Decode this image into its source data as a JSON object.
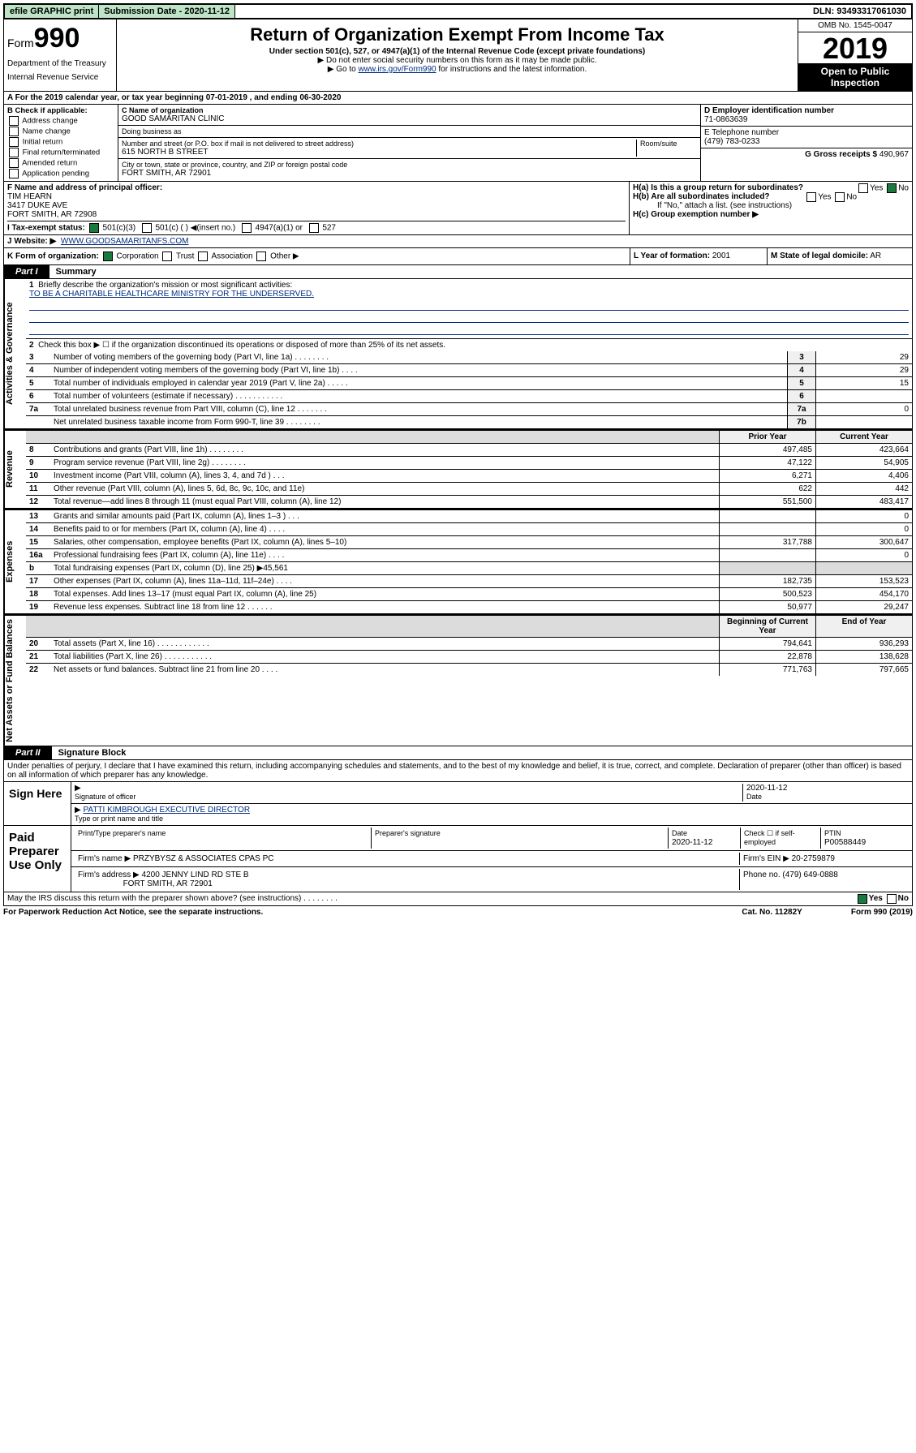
{
  "topbar": {
    "efile": "efile GRAPHIC print",
    "submission_label": "Submission Date",
    "submission_date": "2020-11-12",
    "dln_label": "DLN:",
    "dln": "93493317061030"
  },
  "header": {
    "form_label": "Form",
    "form_no": "990",
    "dept1": "Department of the Treasury",
    "dept2": "Internal Revenue Service",
    "title": "Return of Organization Exempt From Income Tax",
    "subtitle": "Under section 501(c), 527, or 4947(a)(1) of the Internal Revenue Code (except private foundations)",
    "note1": "Do not enter social security numbers on this form as it may be made public.",
    "note2_pre": "Go to ",
    "note2_link": "www.irs.gov/Form990",
    "note2_post": " for instructions and the latest information.",
    "omb": "OMB No. 1545-0047",
    "year": "2019",
    "open": "Open to Public Inspection"
  },
  "row_a": "A   For the 2019 calendar year, or tax year beginning 07-01-2019    , and ending 06-30-2020",
  "col_b": {
    "title": "B Check if applicable:",
    "items": [
      "Address change",
      "Name change",
      "Initial return",
      "Final return/terminated",
      "Amended return",
      "Application pending"
    ]
  },
  "col_c": {
    "c_label": "C Name of organization",
    "c_value": "GOOD SAMARITAN CLINIC",
    "dba_label": "Doing business as",
    "addr_label": "Number and street (or P.O. box if mail is not delivered to street address)",
    "room_label": "Room/suite",
    "addr_value": "615 NORTH B STREET",
    "city_label": "City or town, state or province, country, and ZIP or foreign postal code",
    "city_value": "FORT SMITH, AR  72901"
  },
  "col_right": {
    "d_label": "D Employer identification number",
    "d_value": "71-0863639",
    "e_label": "E Telephone number",
    "e_value": "(479) 783-0233",
    "g_label": "G Gross receipts $",
    "g_value": "490,967"
  },
  "row_f": {
    "f_label": "F  Name and address of principal officer:",
    "f_name": "TIM HEARN",
    "f_addr1": "3417 DUKE AVE",
    "f_addr2": "FORT SMITH, AR  72908"
  },
  "row_h": {
    "ha": "H(a)  Is this a group return for subordinates?",
    "hb": "H(b)  Are all subordinates included?",
    "hb_note": "If \"No,\" attach a list. (see instructions)",
    "hc": "H(c)  Group exemption number ▶"
  },
  "row_i": {
    "label": "I    Tax-exempt status:",
    "opts": [
      "501(c)(3)",
      "501(c) (  ) ◀(insert no.)",
      "4947(a)(1) or",
      "527"
    ]
  },
  "row_j": {
    "label": "J   Website: ▶",
    "value": "WWW.GOODSAMARITANFS.COM"
  },
  "row_k": {
    "label": "K Form of organization:",
    "opts": [
      "Corporation",
      "Trust",
      "Association",
      "Other ▶"
    ],
    "l_label": "L Year of formation:",
    "l_value": "2001",
    "m_label": "M State of legal domicile:",
    "m_value": "AR"
  },
  "part1": {
    "tab": "Part I",
    "title": "Summary"
  },
  "governance": {
    "vlabel": "Activities & Governance",
    "line1_label": "Briefly describe the organization's mission or most significant activities:",
    "line1_value": "TO BE A CHARITABLE HEALTHCARE MINISTRY FOR THE UNDERSERVED.",
    "line2": "Check this box ▶ ☐  if the organization discontinued its operations or disposed of more than 25% of its net assets.",
    "rows": [
      {
        "n": "3",
        "txt": "Number of voting members of the governing body (Part VI, line 1a)   .   .   .   .   .   .   .   .",
        "box": "3",
        "val": "29"
      },
      {
        "n": "4",
        "txt": "Number of independent voting members of the governing body (Part VI, line 1b)   .   .   .   .",
        "box": "4",
        "val": "29"
      },
      {
        "n": "5",
        "txt": "Total number of individuals employed in calendar year 2019 (Part V, line 2a)   .   .   .   .   .",
        "box": "5",
        "val": "15"
      },
      {
        "n": "6",
        "txt": "Total number of volunteers (estimate if necessary)   .   .   .   .   .   .   .   .   .   .   .",
        "box": "6",
        "val": ""
      },
      {
        "n": "7a",
        "txt": "Total unrelated business revenue from Part VIII, column (C), line 12   .   .   .   .   .   .   .",
        "box": "7a",
        "val": "0"
      },
      {
        "n": "",
        "txt": "Net unrelated business taxable income from Form 990-T, line 39   .   .   .   .   .   .   .   .",
        "box": "7b",
        "val": ""
      }
    ]
  },
  "revenue": {
    "vlabel": "Revenue",
    "header_prior": "Prior Year",
    "header_current": "Current Year",
    "rows": [
      {
        "n": "8",
        "txt": "Contributions and grants (Part VIII, line 1h)   .   .   .   .   .   .   .   .",
        "p": "497,485",
        "c": "423,664"
      },
      {
        "n": "9",
        "txt": "Program service revenue (Part VIII, line 2g)   .   .   .   .   .   .   .   .",
        "p": "47,122",
        "c": "54,905"
      },
      {
        "n": "10",
        "txt": "Investment income (Part VIII, column (A), lines 3, 4, and 7d )   .   .   .",
        "p": "6,271",
        "c": "4,406"
      },
      {
        "n": "11",
        "txt": "Other revenue (Part VIII, column (A), lines 5, 6d, 8c, 9c, 10c, and 11e)",
        "p": "622",
        "c": "442"
      },
      {
        "n": "12",
        "txt": "Total revenue—add lines 8 through 11 (must equal Part VIII, column (A), line 12)",
        "p": "551,500",
        "c": "483,417"
      }
    ]
  },
  "expenses": {
    "vlabel": "Expenses",
    "rows": [
      {
        "n": "13",
        "txt": "Grants and similar amounts paid (Part IX, column (A), lines 1–3 )   .   .   .",
        "p": "",
        "c": "0"
      },
      {
        "n": "14",
        "txt": "Benefits paid to or for members (Part IX, column (A), line 4)   .   .   .   .",
        "p": "",
        "c": "0"
      },
      {
        "n": "15",
        "txt": "Salaries, other compensation, employee benefits (Part IX, column (A), lines 5–10)",
        "p": "317,788",
        "c": "300,647"
      },
      {
        "n": "16a",
        "txt": "Professional fundraising fees (Part IX, column (A), line 11e)   .   .   .   .",
        "p": "",
        "c": "0"
      },
      {
        "n": "b",
        "txt": "Total fundraising expenses (Part IX, column (D), line 25) ▶45,561",
        "p": "__grey__",
        "c": "__grey__"
      },
      {
        "n": "17",
        "txt": "Other expenses (Part IX, column (A), lines 11a–11d, 11f–24e)   .   .   .   .",
        "p": "182,735",
        "c": "153,523"
      },
      {
        "n": "18",
        "txt": "Total expenses. Add lines 13–17 (must equal Part IX, column (A), line 25)",
        "p": "500,523",
        "c": "454,170"
      },
      {
        "n": "19",
        "txt": "Revenue less expenses. Subtract line 18 from line 12   .   .   .   .   .   .",
        "p": "50,977",
        "c": "29,247"
      }
    ]
  },
  "netassets": {
    "vlabel": "Net Assets or Fund Balances",
    "header_prior": "Beginning of Current Year",
    "header_current": "End of Year",
    "rows": [
      {
        "n": "20",
        "txt": "Total assets (Part X, line 16)   .   .   .   .   .   .   .   .   .   .   .   .",
        "p": "794,641",
        "c": "936,293"
      },
      {
        "n": "21",
        "txt": "Total liabilities (Part X, line 26)   .   .   .   .   .   .   .   .   .   .   .",
        "p": "22,878",
        "c": "138,628"
      },
      {
        "n": "22",
        "txt": "Net assets or fund balances. Subtract line 21 from line 20   .   .   .   .",
        "p": "771,763",
        "c": "797,665"
      }
    ]
  },
  "part2": {
    "tab": "Part II",
    "title": "Signature Block"
  },
  "sig": {
    "perjury": "Under penalties of perjury, I declare that I have examined this return, including accompanying schedules and statements, and to the best of my knowledge and belief, it is true, correct, and complete. Declaration of preparer (other than officer) is based on all information of which preparer has any knowledge.",
    "sign_here": "Sign Here",
    "sig_officer": "Signature of officer",
    "date_label": "Date",
    "date_value": "2020-11-12",
    "name_title": "PATTI KIMBROUGH  EXECUTIVE DIRECTOR",
    "name_label": "Type or print name and title"
  },
  "paid": {
    "label": "Paid Preparer Use Only",
    "h1": "Print/Type preparer's name",
    "h2": "Preparer's signature",
    "h3_label": "Date",
    "h3_value": "2020-11-12",
    "h4": "Check ☐ if self-employed",
    "h5_label": "PTIN",
    "h5_value": "P00588449",
    "firm_name_label": "Firm's name    ▶",
    "firm_name": "PRZYBYSZ & ASSOCIATES CPAS PC",
    "firm_ein_label": "Firm's EIN ▶",
    "firm_ein": "20-2759879",
    "firm_addr_label": "Firm's address ▶",
    "firm_addr1": "4200 JENNY LIND RD STE B",
    "firm_addr2": "FORT SMITH, AR  72901",
    "phone_label": "Phone no.",
    "phone": "(479) 649-0888"
  },
  "footer": {
    "discuss": "May the IRS discuss this return with the preparer shown above? (see instructions)   .   .   .   .   .   .   .   .",
    "yes": "Yes",
    "no": "No",
    "paperwork": "For Paperwork Reduction Act Notice, see the separate instructions.",
    "cat": "Cat. No. 11282Y",
    "formno": "Form 990 (2019)"
  }
}
